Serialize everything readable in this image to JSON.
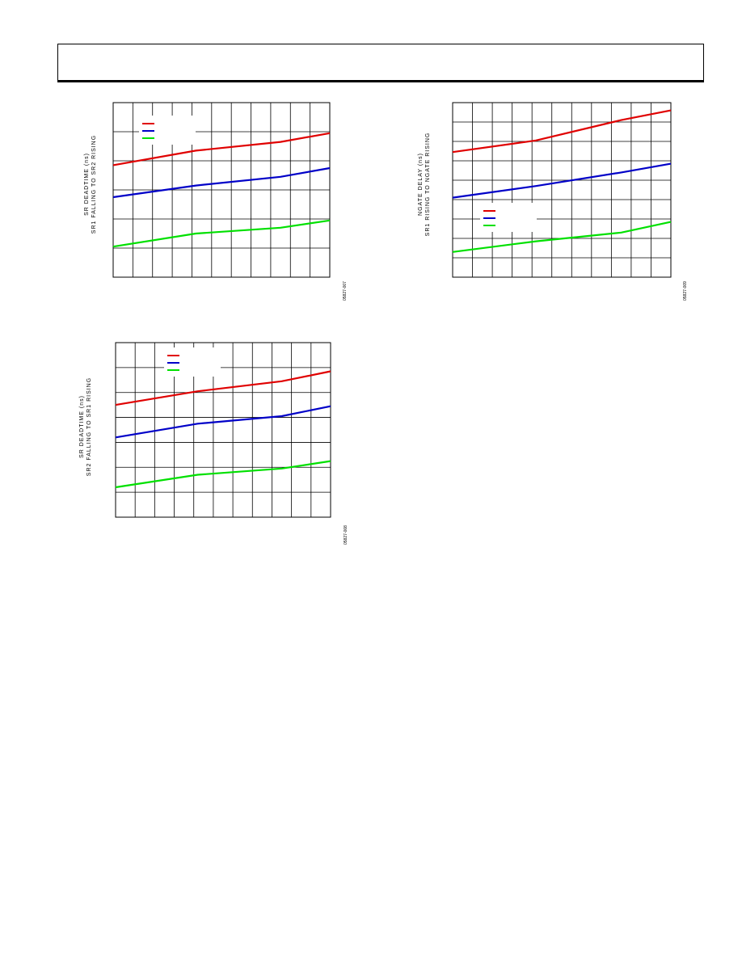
{
  "page": {
    "header_text": ""
  },
  "charts": [
    {
      "ylabel_line1": "SR DEADTIME (ns)",
      "ylabel_line2": "SR1 FALLING TO SR2 RISING",
      "figure_code": "05827-007"
    },
    {
      "ylabel_line1": "NGATE DELAY (ns)",
      "ylabel_line2": "SR1 RISING TO NGATE RISING",
      "figure_code": "05827-009"
    },
    {
      "ylabel_line1": "SR DEADTIME (ns)",
      "ylabel_line2": "SR2 FALLING TO SR1 RISING",
      "figure_code": "05827-008"
    }
  ],
  "chart_data": [
    {
      "type": "line",
      "title": "",
      "ylabel": "SR DEADTIME (ns) SR1 FALLING TO SR2 RISING",
      "xlabel": "",
      "grid": true,
      "x_divisions": 11,
      "y_divisions": 6,
      "xlim": [
        0,
        11
      ],
      "ylim": [
        0,
        6
      ],
      "legend_placement": "top-left",
      "series": [
        {
          "color": "#e00000",
          "x": [
            0,
            4.2,
            8.5,
            11
          ],
          "y": [
            3.85,
            4.35,
            4.65,
            4.95
          ]
        },
        {
          "color": "#0000c8",
          "x": [
            0,
            4.2,
            8.5,
            11
          ],
          "y": [
            2.75,
            3.15,
            3.45,
            3.75
          ]
        },
        {
          "color": "#00e000",
          "x": [
            0,
            4.2,
            8.5,
            11
          ],
          "y": [
            1.05,
            1.5,
            1.7,
            1.95
          ]
        }
      ]
    },
    {
      "type": "line",
      "title": "",
      "ylabel": "NGATE DELAY (ns) SR1 RISING TO NGATE RISING",
      "xlabel": "",
      "grid": true,
      "x_divisions": 11,
      "y_divisions": 9,
      "xlim": [
        0,
        11
      ],
      "ylim": [
        0,
        9
      ],
      "legend_placement": "bottom-left",
      "series": [
        {
          "color": "#e00000",
          "x": [
            0,
            4.2,
            8.5,
            11
          ],
          "y": [
            6.45,
            7.05,
            8.1,
            8.6
          ]
        },
        {
          "color": "#0000c8",
          "x": [
            0,
            4.2,
            8.5,
            11
          ],
          "y": [
            4.1,
            4.7,
            5.4,
            5.85
          ]
        },
        {
          "color": "#00e000",
          "x": [
            0,
            4.2,
            8.5,
            11
          ],
          "y": [
            1.3,
            1.85,
            2.3,
            2.85
          ]
        }
      ]
    },
    {
      "type": "line",
      "title": "",
      "ylabel": "SR DEADTIME (ns) SR2 FALLING TO SR1 RISING",
      "xlabel": "",
      "grid": true,
      "x_divisions": 11,
      "y_divisions": 7,
      "xlim": [
        0,
        11
      ],
      "ylim": [
        0,
        7
      ],
      "legend_placement": "top-center",
      "series": [
        {
          "color": "#e00000",
          "x": [
            0,
            4.2,
            8.5,
            11
          ],
          "y": [
            4.5,
            5.05,
            5.45,
            5.85
          ]
        },
        {
          "color": "#0000c8",
          "x": [
            0,
            4.2,
            8.5,
            11
          ],
          "y": [
            3.2,
            3.75,
            4.05,
            4.45
          ]
        },
        {
          "color": "#00e000",
          "x": [
            0,
            4.2,
            8.5,
            11
          ],
          "y": [
            1.2,
            1.7,
            1.95,
            2.25
          ]
        }
      ]
    }
  ]
}
